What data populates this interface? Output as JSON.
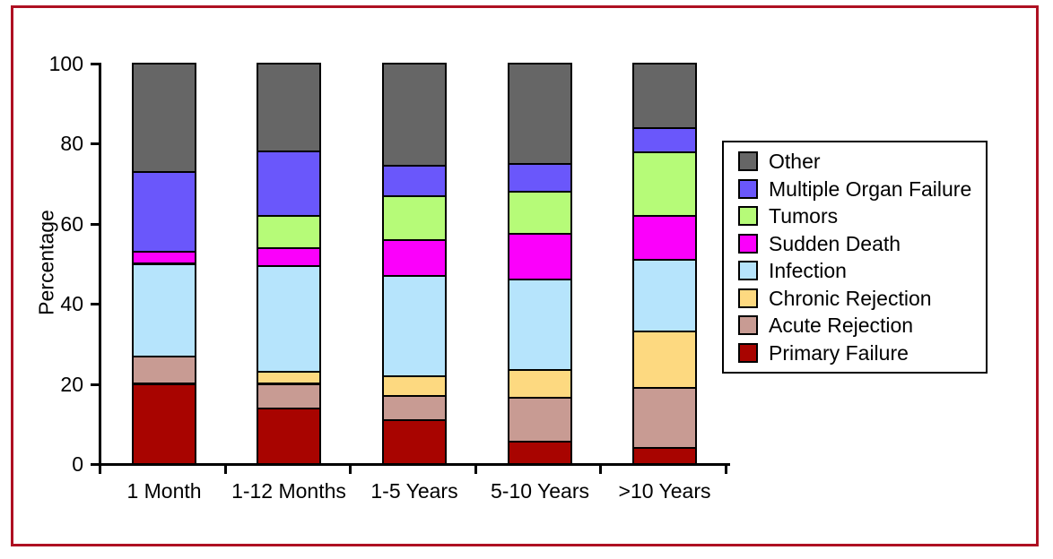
{
  "figure": {
    "frame_border_color": "#AE1022",
    "background_color": "#FFFFFF"
  },
  "chart_data": {
    "type": "bar",
    "stacked": true,
    "title": "",
    "xlabel": "",
    "ylabel": "Percentage",
    "ylim": [
      0,
      100
    ],
    "yticks": [
      0,
      20,
      40,
      60,
      80,
      100
    ],
    "grid": false,
    "categories": [
      "1 Month",
      "1-12 Months",
      "1-5 Years",
      "5-10 Years",
      ">10 Years"
    ],
    "series": [
      {
        "name": "Primary Failure",
        "color": "#A80400",
        "values": [
          20,
          14,
          11,
          5.5,
          4
        ]
      },
      {
        "name": "Acute Rejection",
        "color": "#C89B93",
        "values": [
          7,
          6,
          6,
          11,
          15
        ]
      },
      {
        "name": "Chronic Rejection",
        "color": "#FDD980",
        "values": [
          0,
          3,
          5,
          7,
          14
        ]
      },
      {
        "name": "Infection",
        "color": "#B6E4FC",
        "values": [
          23,
          26.5,
          25,
          22.5,
          18
        ]
      },
      {
        "name": "Sudden Death",
        "color": "#FB00FB",
        "values": [
          3,
          4.5,
          9,
          11.5,
          11
        ]
      },
      {
        "name": "Tumors",
        "color": "#B6FB78",
        "values": [
          0,
          8,
          11,
          10.5,
          16
        ]
      },
      {
        "name": "Multiple Organ Failure",
        "color": "#6A57FB",
        "values": [
          20,
          16,
          7.5,
          7,
          6
        ]
      },
      {
        "name": "Other",
        "color": "#666666",
        "values": [
          27,
          22,
          25.5,
          25,
          16
        ]
      }
    ],
    "legend": {
      "position": "right",
      "entries": [
        "Other",
        "Multiple Organ Failure",
        "Tumors",
        "Sudden Death",
        "Infection",
        "Chronic Rejection",
        "Acute Rejection",
        "Primary Failure"
      ]
    }
  }
}
